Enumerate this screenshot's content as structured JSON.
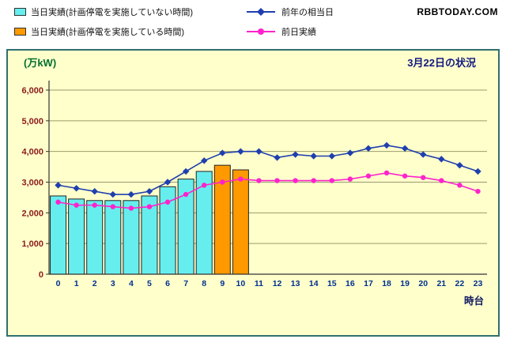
{
  "watermark": "RBBTODAY.COM",
  "colors": {
    "bar_normal": "#66EEEE",
    "bar_outage": "#FF9900",
    "line_last_year": "#1F3FAE",
    "line_prev_day": "#FF22CC",
    "plot_background": "#FFFFCC",
    "chart_border": "#2F7070",
    "grid_line": "#9B9B6A",
    "y_tick_label": "#8B1A1A",
    "x_tick_label": "#00308F",
    "axis": "#333333"
  },
  "chart_data": {
    "type": "bar",
    "title": "3月22日の状況",
    "ylabel": "(万kW)",
    "xlabel": "時台",
    "ylim": [
      0,
      6000
    ],
    "ytick_interval": 1000,
    "grid": true,
    "legend_position": "top-outside",
    "categories": [
      0,
      1,
      2,
      3,
      4,
      5,
      6,
      7,
      8,
      9,
      10,
      11,
      12,
      13,
      14,
      15,
      16,
      17,
      18,
      19,
      20,
      21,
      22,
      23
    ],
    "series": [
      {
        "name": "当日実績(計画停電を実施していない時間)",
        "type": "bar",
        "color": "#66EEEE",
        "values": [
          2550,
          2450,
          2400,
          2400,
          2400,
          2550,
          2850,
          3100,
          3350,
          null,
          null,
          null,
          null,
          null,
          null,
          null,
          null,
          null,
          null,
          null,
          null,
          null,
          null,
          null
        ]
      },
      {
        "name": "当日実績(計画停電を実施している時間)",
        "type": "bar",
        "color": "#FF9900",
        "values": [
          null,
          null,
          null,
          null,
          null,
          null,
          null,
          null,
          null,
          3550,
          3400,
          null,
          null,
          null,
          null,
          null,
          null,
          null,
          null,
          null,
          null,
          null,
          null,
          null
        ]
      },
      {
        "name": "前年の相当日",
        "type": "line",
        "marker": "diamond",
        "color": "#1F3FAE",
        "values": [
          2900,
          2800,
          2700,
          2600,
          2600,
          2700,
          3000,
          3350,
          3700,
          3950,
          4000,
          4000,
          3800,
          3900,
          3850,
          3850,
          3950,
          4100,
          4200,
          4100,
          3900,
          3750,
          3550,
          3350
        ]
      },
      {
        "name": "前日実績",
        "type": "line",
        "marker": "circle",
        "color": "#FF22CC",
        "values": [
          2350,
          2250,
          2250,
          2200,
          2150,
          2200,
          2350,
          2600,
          2900,
          3000,
          3100,
          3050,
          3050,
          3050,
          3050,
          3050,
          3100,
          3200,
          3300,
          3200,
          3150,
          3050,
          2900,
          2700
        ]
      }
    ]
  }
}
